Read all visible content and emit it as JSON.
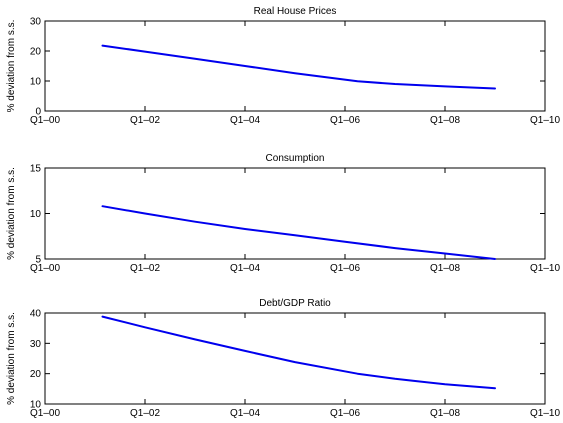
{
  "chart_data": [
    {
      "type": "line",
      "title": "Real House Prices",
      "ylabel": "% deviation from s.s.",
      "xlabel": "",
      "x_ticks": [
        "Q1–00",
        "Q1–02",
        "Q1–04",
        "Q1–06",
        "Q1–08",
        "Q1–10"
      ],
      "y_ticks": [
        0,
        10,
        20,
        30
      ],
      "xlim": [
        2000,
        2010
      ],
      "ylim": [
        0,
        30
      ],
      "grid": false,
      "series": [
        {
          "x": [
            2001.15,
            2002,
            2003,
            2004,
            2005,
            2006.25,
            2007,
            2008,
            2009.0
          ],
          "y": [
            21.8,
            19.8,
            17.4,
            15.0,
            12.6,
            9.9,
            9.0,
            8.2,
            7.5
          ]
        }
      ],
      "color": "#0000ee"
    },
    {
      "type": "line",
      "title": "Consumption",
      "ylabel": "% deviation from s.s.",
      "xlabel": "",
      "x_ticks": [
        "Q1–00",
        "Q1–02",
        "Q1–04",
        "Q1–06",
        "Q1–08",
        "Q1–10"
      ],
      "y_ticks": [
        5,
        10,
        15
      ],
      "xlim": [
        2000,
        2010
      ],
      "ylim": [
        5,
        15
      ],
      "grid": false,
      "series": [
        {
          "x": [
            2001.15,
            2002,
            2003,
            2004,
            2005,
            2006,
            2007,
            2008,
            2009.0
          ],
          "y": [
            10.8,
            10.0,
            9.1,
            8.3,
            7.6,
            6.9,
            6.2,
            5.6,
            5.0
          ]
        }
      ],
      "color": "#0000ee"
    },
    {
      "type": "line",
      "title": "Debt/GDP Ratio",
      "ylabel": "% deviation from s.s.",
      "xlabel": "",
      "x_ticks": [
        "Q1–00",
        "Q1–02",
        "Q1–04",
        "Q1–06",
        "Q1–08",
        "Q1–10"
      ],
      "y_ticks": [
        10,
        20,
        30,
        40
      ],
      "xlim": [
        2000,
        2010
      ],
      "ylim": [
        10,
        40
      ],
      "grid": false,
      "series": [
        {
          "x": [
            2001.15,
            2002,
            2003,
            2004,
            2005,
            2006.25,
            2007,
            2008,
            2009.0
          ],
          "y": [
            38.8,
            35.3,
            31.3,
            27.5,
            23.8,
            20.0,
            18.3,
            16.5,
            15.2
          ]
        }
      ],
      "color": "#0000ee"
    }
  ]
}
